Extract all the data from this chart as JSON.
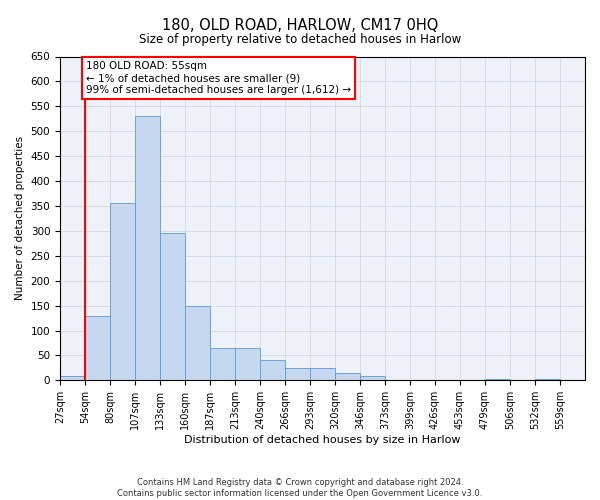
{
  "title": "180, OLD ROAD, HARLOW, CM17 0HQ",
  "subtitle": "Size of property relative to detached houses in Harlow",
  "xlabel": "Distribution of detached houses by size in Harlow",
  "ylabel": "Number of detached properties",
  "bar_color": "#c5d8f0",
  "bar_edge_color": "#5b9bd5",
  "bins": [
    "27sqm",
    "54sqm",
    "80sqm",
    "107sqm",
    "133sqm",
    "160sqm",
    "187sqm",
    "213sqm",
    "240sqm",
    "266sqm",
    "293sqm",
    "320sqm",
    "346sqm",
    "373sqm",
    "399sqm",
    "426sqm",
    "453sqm",
    "479sqm",
    "506sqm",
    "532sqm",
    "559sqm"
  ],
  "values": [
    9,
    130,
    355,
    530,
    295,
    150,
    65,
    65,
    40,
    25,
    25,
    15,
    8,
    0,
    0,
    0,
    0,
    2,
    0,
    2,
    0
  ],
  "annotation_text": "180 OLD ROAD: 55sqm\n← 1% of detached houses are smaller (9)\n99% of semi-detached houses are larger (1,612) →",
  "annotation_box_color": "white",
  "annotation_box_edge_color": "red",
  "vline_color": "red",
  "ylim": [
    0,
    650
  ],
  "yticks": [
    0,
    50,
    100,
    150,
    200,
    250,
    300,
    350,
    400,
    450,
    500,
    550,
    600,
    650
  ],
  "grid_color": "#d0d8e8",
  "background_color": "#eef2f8",
  "footnote": "Contains HM Land Registry data © Crown copyright and database right 2024.\nContains public sector information licensed under the Open Government Licence v3.0.",
  "bin_width": 27,
  "vline_x": 54
}
